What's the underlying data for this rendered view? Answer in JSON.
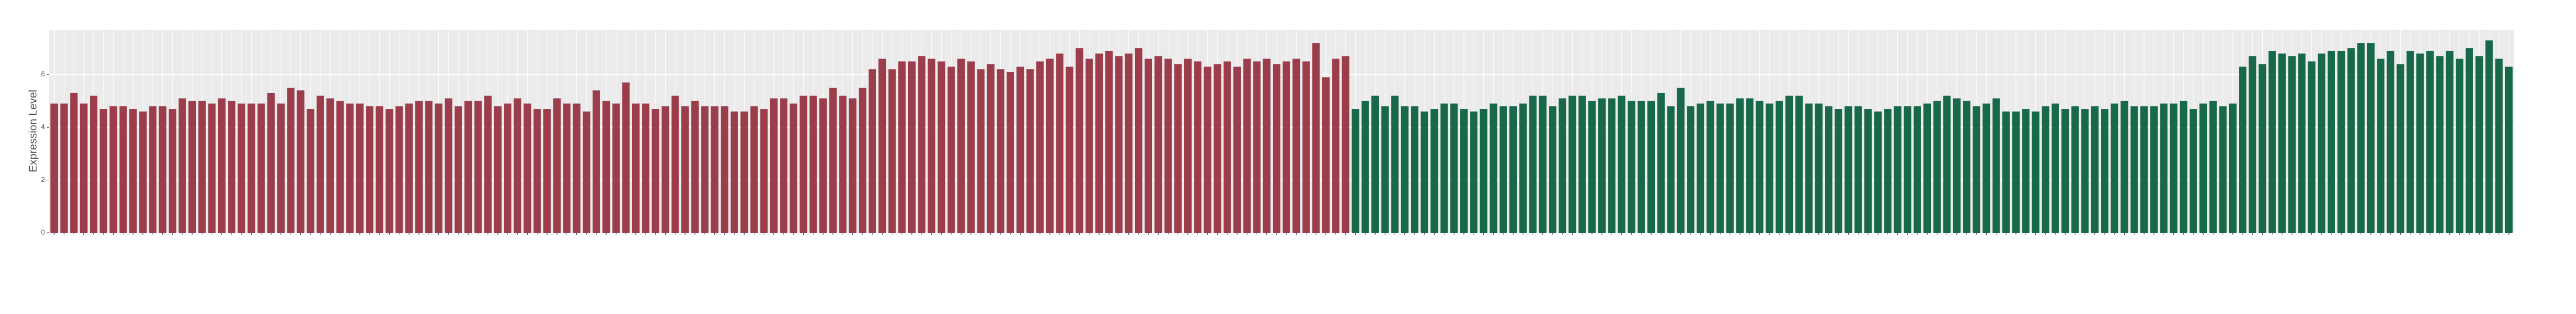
{
  "chart_data": {
    "type": "bar",
    "y_label": "Expression Level",
    "ylim": [
      0,
      7.7
    ],
    "yticks": [
      0,
      2,
      4,
      6
    ],
    "grid": true,
    "categories": [
      null,
      null,
      null,
      null,
      null,
      null,
      null,
      null,
      null,
      null,
      null,
      null,
      null,
      null,
      null,
      null,
      null,
      null,
      null,
      null,
      null,
      null,
      null,
      null,
      null,
      null,
      null,
      null,
      null,
      null,
      null,
      null,
      null,
      null,
      null,
      null,
      null,
      null,
      null,
      null,
      null,
      null,
      null,
      null,
      null,
      null,
      null,
      null,
      null,
      null,
      null,
      null,
      null,
      null,
      null,
      null,
      null,
      null,
      null,
      null,
      null,
      null,
      null,
      null,
      null,
      null,
      null,
      null,
      null,
      null,
      null,
      null,
      null,
      null,
      null,
      null,
      null,
      null,
      null,
      null,
      null,
      null,
      null,
      null,
      null,
      null,
      null,
      null,
      null,
      null,
      null,
      null,
      null,
      null,
      null,
      null,
      null,
      null,
      null,
      null,
      null,
      null,
      null,
      null,
      null,
      null,
      null,
      null,
      null,
      null,
      null,
      null,
      null,
      null,
      null,
      null,
      null,
      null,
      null,
      null,
      null,
      null,
      null,
      null,
      null,
      null,
      null,
      null,
      null,
      null,
      null,
      null,
      null,
      null,
      null,
      null,
      null,
      null,
      null,
      null,
      null,
      null,
      null,
      null,
      null,
      null,
      null,
      null,
      null,
      null,
      null,
      null,
      null,
      null,
      null,
      null,
      null,
      null,
      null,
      null,
      null,
      null,
      null,
      null,
      null,
      null,
      null,
      null,
      null,
      null,
      null,
      null,
      null,
      null,
      null,
      null,
      null,
      null,
      null,
      null,
      null,
      null,
      null,
      null,
      null,
      null,
      null,
      null,
      null,
      null,
      null,
      null,
      null,
      null,
      null,
      null,
      null,
      null,
      null,
      null,
      null,
      null,
      null,
      null,
      null,
      null,
      null,
      null,
      null,
      null,
      null,
      null,
      null,
      null,
      null,
      null,
      null,
      null,
      null,
      null,
      null,
      null,
      null,
      null,
      null,
      null,
      null,
      null,
      null,
      null,
      null,
      null,
      null,
      null,
      null,
      null,
      null,
      null,
      null,
      null,
      null,
      null,
      null,
      null,
      null,
      null,
      null,
      null,
      null,
      null
    ],
    "series": [
      {
        "color": "#9b3d4b",
        "values": [
          4.9,
          4.9,
          5.3,
          4.9,
          5.2,
          4.7,
          4.8,
          4.8,
          4.7,
          4.6,
          4.8,
          4.8,
          4.7,
          5.1,
          5.0,
          5.0,
          4.9,
          5.1,
          5.0,
          4.9,
          4.9,
          4.9,
          5.3,
          4.9,
          5.5,
          5.4,
          4.7,
          5.2,
          5.1,
          5.0,
          4.9,
          4.9,
          4.8,
          4.8,
          4.7,
          4.8,
          4.9,
          5.0,
          5.0,
          4.9,
          5.1,
          4.8,
          5.0,
          5.0,
          5.2,
          4.8,
          4.9,
          5.1,
          4.9,
          4.7,
          4.7,
          5.1,
          4.9,
          4.9,
          4.6,
          5.4,
          5.0,
          4.9,
          5.7,
          4.9,
          4.9,
          4.7,
          4.8,
          5.2,
          4.8,
          5.0,
          4.8,
          4.8,
          4.8,
          4.6,
          4.6,
          4.8,
          4.7,
          5.1,
          5.1,
          4.9,
          5.2,
          5.2,
          5.1,
          5.5,
          5.2,
          5.1,
          5.5,
          6.2,
          6.6,
          6.2,
          6.5,
          6.5,
          6.7,
          6.6,
          6.5,
          6.3,
          6.6,
          6.5,
          6.2,
          6.4,
          6.2,
          6.1,
          6.3,
          6.2,
          6.5,
          6.6,
          6.8,
          6.3,
          7.0,
          6.6,
          6.8,
          6.9,
          6.7,
          6.8,
          7.0,
          6.6,
          6.7,
          6.6,
          6.4,
          6.6,
          6.5,
          6.3,
          6.4,
          6.5,
          6.3,
          6.6,
          6.5,
          6.6,
          6.4,
          6.5,
          6.6,
          6.5,
          7.2,
          5.9,
          6.6,
          6.7,
          null,
          null,
          null,
          null,
          null,
          null,
          null,
          null,
          null,
          null,
          null,
          null,
          null,
          null,
          null,
          null,
          null,
          null,
          null,
          null,
          null,
          null,
          null,
          null,
          null,
          null,
          null,
          null,
          null,
          null,
          null,
          null,
          null,
          null,
          null,
          null,
          null,
          null,
          null,
          null,
          null,
          null,
          null,
          null,
          null,
          null,
          null,
          null,
          null,
          null,
          null,
          null,
          null,
          null,
          null,
          null,
          null,
          null,
          null,
          null,
          null,
          null,
          null,
          null,
          null,
          null,
          null,
          null,
          null,
          null,
          null,
          null,
          null,
          null,
          null,
          null,
          null,
          null,
          null,
          null,
          null,
          null,
          null,
          null,
          null,
          null,
          null,
          null,
          null,
          null,
          null,
          null,
          null,
          null,
          null,
          null,
          null,
          null,
          null,
          null,
          null,
          null,
          null,
          null,
          null,
          null,
          null,
          null,
          null,
          null,
          null,
          null,
          null,
          null,
          null,
          null,
          null,
          null
        ]
      },
      {
        "color": "#17694a",
        "values": [
          null,
          null,
          null,
          null,
          null,
          null,
          null,
          null,
          null,
          null,
          null,
          null,
          null,
          null,
          null,
          null,
          null,
          null,
          null,
          null,
          null,
          null,
          null,
          null,
          null,
          null,
          null,
          null,
          null,
          null,
          null,
          null,
          null,
          null,
          null,
          null,
          null,
          null,
          null,
          null,
          null,
          null,
          null,
          null,
          null,
          null,
          null,
          null,
          null,
          null,
          null,
          null,
          null,
          null,
          null,
          null,
          null,
          null,
          null,
          null,
          null,
          null,
          null,
          null,
          null,
          null,
          null,
          null,
          null,
          null,
          null,
          null,
          null,
          null,
          null,
          null,
          null,
          null,
          null,
          null,
          null,
          null,
          null,
          null,
          null,
          null,
          null,
          null,
          null,
          null,
          null,
          null,
          null,
          null,
          null,
          null,
          null,
          null,
          null,
          null,
          null,
          null,
          null,
          null,
          null,
          null,
          null,
          null,
          null,
          null,
          null,
          null,
          null,
          null,
          null,
          null,
          null,
          null,
          null,
          null,
          null,
          null,
          null,
          null,
          null,
          null,
          null,
          null,
          null,
          null,
          null,
          null,
          4.7,
          5.0,
          5.2,
          4.8,
          5.2,
          4.8,
          4.8,
          4.6,
          4.7,
          4.9,
          4.9,
          4.7,
          4.6,
          4.7,
          4.9,
          4.8,
          4.8,
          4.9,
          5.2,
          5.2,
          4.8,
          5.1,
          5.2,
          5.2,
          5.0,
          5.1,
          5.1,
          5.2,
          5.0,
          5.0,
          5.0,
          5.3,
          4.8,
          5.5,
          4.8,
          4.9,
          5.0,
          4.9,
          4.9,
          5.1,
          5.1,
          5.0,
          4.9,
          5.0,
          5.2,
          5.2,
          4.9,
          4.9,
          4.8,
          4.7,
          4.8,
          4.8,
          4.7,
          4.6,
          4.7,
          4.8,
          4.8,
          4.8,
          4.9,
          5.0,
          5.2,
          5.1,
          5.0,
          4.8,
          4.9,
          5.1,
          4.6,
          4.6,
          4.7,
          4.6,
          4.8,
          4.9,
          4.7,
          4.8,
          4.7,
          4.8,
          4.7,
          4.9,
          5.0,
          4.8,
          4.8,
          4.8,
          4.9,
          4.9,
          5.0,
          4.7,
          4.9,
          5.0,
          4.8,
          4.9,
          6.3,
          6.7,
          6.4,
          6.9,
          6.8,
          6.7,
          6.8,
          6.5,
          6.8,
          6.9,
          6.9,
          7.0,
          7.2,
          7.2,
          6.6,
          6.9,
          6.4,
          6.9,
          6.8,
          6.9,
          6.7,
          6.9,
          6.6,
          7.0,
          6.7,
          7.3,
          6.6,
          6.3
        ]
      }
    ]
  }
}
